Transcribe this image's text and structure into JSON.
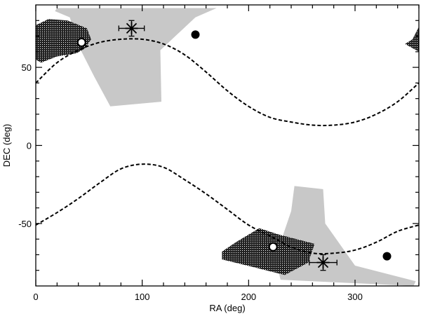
{
  "chart_data": {
    "type": "scatter",
    "xlabel": "RA (deg)",
    "ylabel": "DEC (deg)",
    "xlim": [
      0,
      360
    ],
    "ylim": [
      -90,
      90
    ],
    "grid": false,
    "x_ticks": [
      0,
      100,
      200,
      300
    ],
    "x_tick_labels": [
      "0",
      "100",
      "200",
      "300"
    ],
    "y_ticks": [
      -50,
      0,
      50
    ],
    "y_tick_labels": [
      "-50",
      "0",
      "50"
    ],
    "colors": {
      "gray_region": "#c8c8c8",
      "hatched_region": "#222222",
      "curve": "#000000",
      "marker": "#000000"
    },
    "gray_regions": [
      [
        [
          20,
          88
        ],
        [
          170,
          88
        ],
        [
          150,
          82
        ],
        [
          117,
          61
        ],
        [
          118,
          28
        ],
        [
          70,
          25
        ],
        [
          55,
          44
        ],
        [
          40,
          64
        ],
        [
          32,
          82
        ],
        [
          18,
          86
        ]
      ],
      [
        [
          243,
          -26
        ],
        [
          270,
          -28
        ],
        [
          272,
          -50
        ],
        [
          300,
          -77
        ],
        [
          357,
          -87
        ],
        [
          355,
          -90
        ],
        [
          230,
          -86
        ],
        [
          225,
          -72
        ],
        [
          232,
          -58
        ],
        [
          240,
          -42
        ]
      ]
    ],
    "hatched_regions": [
      [
        [
          0,
          77
        ],
        [
          12,
          81
        ],
        [
          30,
          80
        ],
        [
          48,
          75
        ],
        [
          52,
          68
        ],
        [
          46,
          62
        ],
        [
          38,
          59
        ],
        [
          20,
          57
        ],
        [
          5,
          53
        ],
        [
          0,
          55
        ]
      ],
      [
        [
          360,
          76
        ],
        [
          354,
          68
        ],
        [
          347,
          65
        ],
        [
          360,
          60
        ]
      ],
      [
        [
          175,
          -68
        ],
        [
          188,
          -62
        ],
        [
          210,
          -53
        ],
        [
          228,
          -57
        ],
        [
          262,
          -63
        ],
        [
          256,
          -75
        ],
        [
          234,
          -83
        ],
        [
          205,
          -78
        ],
        [
          175,
          -73
        ]
      ]
    ],
    "dashed_curves": [
      {
        "ra": [
          0,
          20,
          40,
          60,
          80,
          100,
          120,
          140,
          160,
          180,
          200,
          220,
          240,
          260,
          280,
          300,
          320,
          340,
          360
        ],
        "dec": [
          40,
          53,
          61,
          66,
          68,
          68,
          65,
          58,
          47,
          35,
          25,
          18,
          15,
          13,
          13,
          15,
          20,
          28,
          40
        ]
      },
      {
        "ra": [
          0,
          20,
          40,
          60,
          80,
          100,
          120,
          140,
          160,
          180,
          200,
          220,
          240,
          260,
          280,
          300,
          320,
          340,
          360
        ],
        "dec": [
          -51,
          -43,
          -34,
          -24,
          -15,
          -12,
          -14,
          -22,
          -31,
          -41,
          -51,
          -58,
          -65,
          -69,
          -69,
          -67,
          -62,
          -55,
          -51
        ]
      }
    ],
    "points": [
      {
        "marker": "star",
        "ra": 90,
        "dec": 75,
        "xerr": 12,
        "yerr": 5
      },
      {
        "marker": "star",
        "ra": 270,
        "dec": -75,
        "xerr": 13,
        "yerr": 5
      },
      {
        "marker": "filled-circle",
        "ra": 150,
        "dec": 71
      },
      {
        "marker": "filled-circle",
        "ra": 330,
        "dec": -71
      },
      {
        "marker": "open-circle",
        "ra": 43,
        "dec": 66
      },
      {
        "marker": "open-circle",
        "ra": 223,
        "dec": -65
      }
    ]
  }
}
